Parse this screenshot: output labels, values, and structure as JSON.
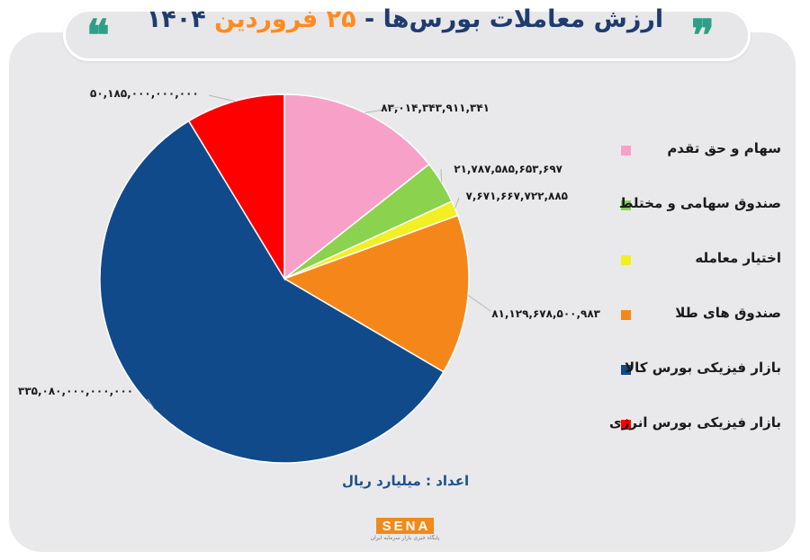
{
  "header": {
    "title_main": "ارزش معاملات بورس‌ها - ",
    "title_accent": "۲۵ فروردین",
    "title_year": " ۱۴۰۴",
    "quote_open": "❝",
    "quote_close": "❞"
  },
  "chart_data": {
    "type": "pie",
    "title": "ارزش معاملات بورس‌ها - ۲۵ فروردین ۱۴۰۴",
    "legend_position": "right",
    "series": [
      {
        "name": "سهام و حق تقدم",
        "value": 83014343911341,
        "label": "۸۳,۰۱۴,۳۴۳,۹۱۱,۳۴۱",
        "color": "#f7a1c9"
      },
      {
        "name": "صندوق سهامی و مختلط",
        "value": 21787585653697,
        "label": "۲۱,۷۸۷,۵۸۵,۶۵۳,۶۹۷",
        "color": "#8bd24e"
      },
      {
        "name": "اختیار معامله",
        "value": 7671667722885,
        "label": "۷,۶۷۱,۶۶۷,۷۲۲,۸۸۵",
        "color": "#f2ef22"
      },
      {
        "name": "صندوق های طلا",
        "value": 81129678500983,
        "label": "۸۱,۱۲۹,۶۷۸,۵۰۰,۹۸۳",
        "color": "#f5871a"
      },
      {
        "name": "بازار فیزیکی بورس کالا",
        "value": 335080000000000,
        "label": "۳۳۵,۰۸۰,۰۰۰,۰۰۰,۰۰۰",
        "color": "#114a8b"
      },
      {
        "name": "بازار فیزیکی بورس انرژی",
        "value": 50185000000000,
        "label": "۵۰,۱۸۵,۰۰۰,۰۰۰,۰۰۰",
        "color": "#ff0000"
      }
    ]
  },
  "footer": {
    "note": "اعداد : میلیارد ریال",
    "logo_text": "SENA",
    "logo_sub": "پایگاه خبری بازار سرمایه ایران"
  }
}
